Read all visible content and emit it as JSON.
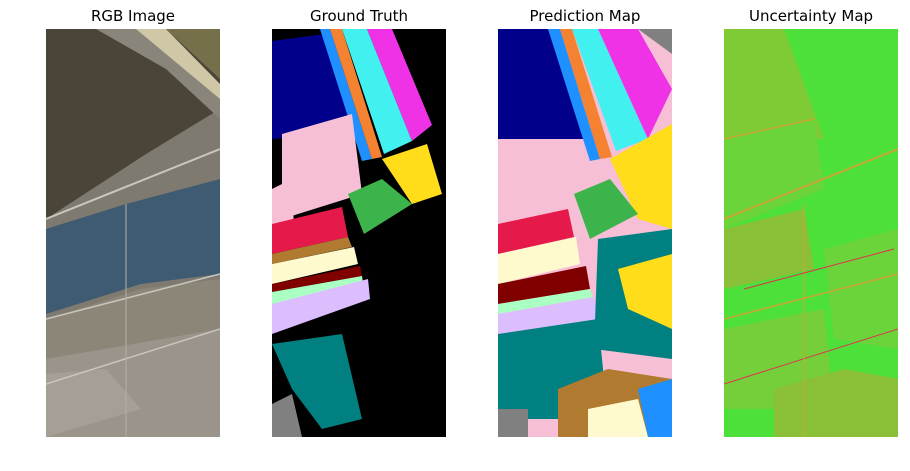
{
  "figure": {
    "panels": [
      {
        "id": "rgb",
        "title": "RGB Image"
      },
      {
        "id": "gt",
        "title": "Ground Truth"
      },
      {
        "id": "pred",
        "title": "Prediction Map"
      },
      {
        "id": "unc",
        "title": "Uncertainty Map"
      }
    ]
  },
  "palette": {
    "background": "#000000",
    "navy": "#00008b",
    "sky_blue": "#1e90ff",
    "orange": "#f58231",
    "cyan": "#42f0f0",
    "magenta": "#f032e6",
    "pink": "#f7bfd6",
    "yellow": "#ffdd1a",
    "green": "#3cb44b",
    "crimson": "#e6194b",
    "brown": "#b07a30",
    "cream": "#fffacd",
    "maroon": "#800000",
    "mint": "#aaffc3",
    "lavender": "#dcbeff",
    "teal": "#008080",
    "gray": "#808080",
    "uncertainty_low": "#4ddf3a",
    "uncertainty_mid": "#c9a833",
    "uncertainty_high": "#e0334d"
  }
}
